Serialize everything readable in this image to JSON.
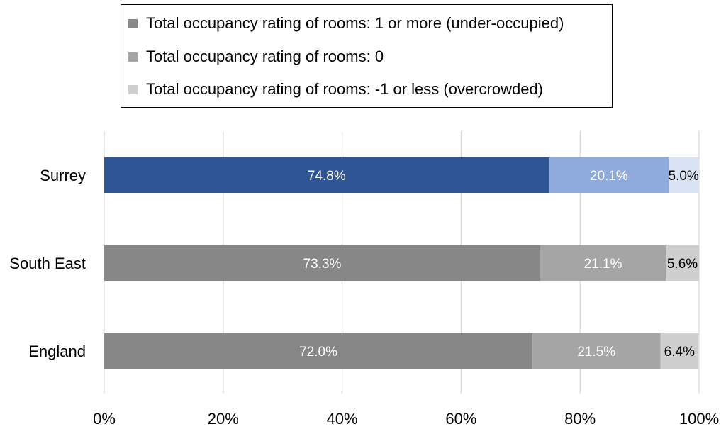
{
  "chart_data": {
    "type": "bar",
    "orientation": "horizontal",
    "stacked": true,
    "categories": [
      "Surrey",
      "South East",
      "England"
    ],
    "series": [
      {
        "name": "Total occupancy rating of rooms: 1 or more (under-occupied)",
        "values": [
          74.8,
          73.3,
          72.0
        ],
        "labels": [
          "74.8%",
          "73.3%",
          "72.0%"
        ]
      },
      {
        "name": "Total occupancy rating of rooms: 0",
        "values": [
          20.1,
          21.1,
          21.5
        ],
        "labels": [
          "20.1%",
          "21.1%",
          "21.5%"
        ]
      },
      {
        "name": "Total occupancy rating of rooms: -1 or less (overcrowded)",
        "values": [
          5.0,
          5.6,
          6.4
        ],
        "labels": [
          "5.0%",
          "5.6%",
          "6.4%"
        ]
      }
    ],
    "xlim": [
      0,
      100
    ],
    "x_ticks": [
      0,
      20,
      40,
      60,
      80,
      100
    ],
    "x_tick_labels": [
      "0%",
      "20%",
      "40%",
      "60%",
      "80%",
      "100%"
    ],
    "grid": "vertical",
    "legend_position": "top",
    "title": "",
    "xlabel": "",
    "ylabel": "",
    "colors": {
      "default_series": [
        "#878787",
        "#a5a5a5",
        "#cfcfcf"
      ],
      "highlight_category": "Surrey",
      "highlight_series": [
        "#2f5597",
        "#8faadc",
        "#dae3f3"
      ],
      "legend_swatches": [
        "#878787",
        "#a5a5a5",
        "#cfcfcf"
      ],
      "gridline": "#d9d9d9",
      "label_light": "#ffffff",
      "label_dark": "#000000"
    }
  }
}
